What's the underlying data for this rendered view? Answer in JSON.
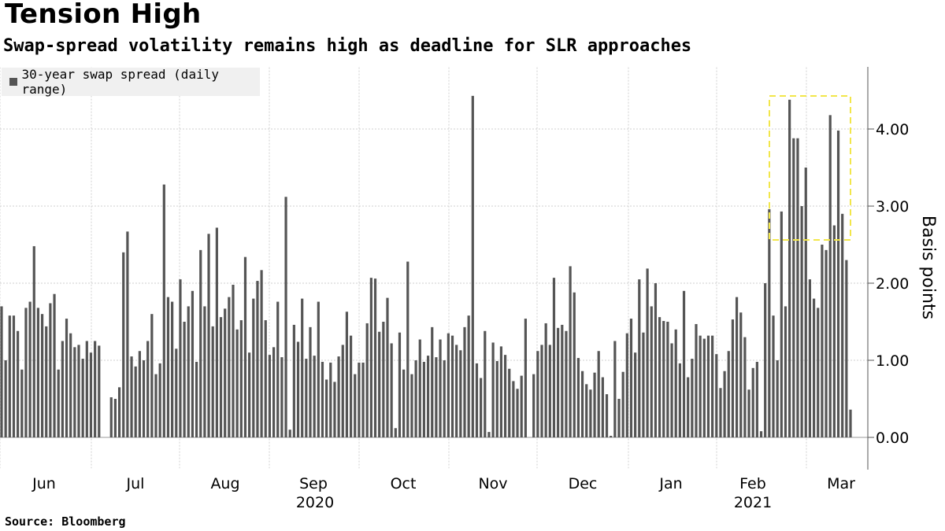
{
  "chart_data": {
    "type": "bar",
    "title": "Tension High",
    "subtitle": "Swap-spread volatility remains high as deadline for SLR approaches",
    "series_name": "30-year swap spread (daily range)",
    "ylabel": "Basis points",
    "ylim": [
      -0.4,
      4.8
    ],
    "yticks": [
      "0.00",
      "1.00",
      "2.00",
      "3.00",
      "4.00"
    ],
    "ytick_values": [
      0,
      1,
      2,
      3,
      4
    ],
    "months": [
      "Jun",
      "Jul",
      "Aug",
      "Sep",
      "Oct",
      "Nov",
      "Dec",
      "Jan",
      "Feb",
      "Mar"
    ],
    "years": [
      "2020",
      "2021"
    ],
    "source": "Source: Bloomberg",
    "values": [
      1.7,
      1.0,
      1.58,
      1.58,
      1.38,
      0.88,
      1.68,
      1.76,
      2.48,
      1.68,
      1.6,
      1.44,
      1.74,
      1.86,
      0.88,
      1.25,
      1.54,
      1.35,
      1.17,
      1.2,
      1.02,
      1.25,
      1.1,
      1.25,
      1.19,
      0,
      0,
      0.52,
      0.5,
      0.65,
      2.4,
      2.67,
      1.05,
      0.92,
      1.12,
      1.0,
      1.25,
      1.6,
      0.82,
      0.96,
      3.28,
      1.82,
      1.76,
      1.15,
      2.05,
      1.5,
      1.7,
      1.9,
      0.98,
      2.43,
      1.7,
      2.64,
      1.44,
      2.72,
      1.56,
      1.67,
      1.82,
      1.98,
      1.4,
      1.52,
      2.34,
      1.1,
      1.8,
      2.03,
      2.17,
      1.52,
      1.07,
      1.17,
      1.76,
      1.04,
      3.12,
      0.1,
      1.46,
      1.24,
      1.8,
      1.02,
      1.43,
      1.06,
      1.76,
      0.98,
      0.75,
      0.97,
      0.72,
      1.05,
      1.2,
      1.63,
      1.32,
      0.82,
      0.97,
      0.97,
      1.48,
      2.07,
      2.06,
      1.37,
      1.5,
      1.81,
      1.22,
      0.12,
      1.36,
      0.88,
      2.28,
      0.82,
      1.0,
      1.27,
      0.98,
      1.06,
      1.43,
      1.04,
      1.27,
      1.0,
      1.35,
      1.32,
      1.2,
      1.13,
      1.43,
      1.58,
      4.43,
      0.96,
      0.77,
      1.38,
      0.07,
      1.23,
      0.99,
      1.18,
      1.07,
      0.89,
      0.73,
      0.63,
      0.8,
      1.54,
      0,
      0.82,
      1.12,
      1.2,
      1.48,
      1.2,
      2.07,
      1.42,
      1.46,
      1.38,
      2.22,
      1.88,
      1.03,
      0.86,
      0.69,
      0.62,
      0.84,
      1.12,
      0.78,
      0.56,
      0.02,
      1.25,
      0.5,
      0.85,
      1.35,
      1.54,
      1.1,
      2.05,
      1.36,
      2.19,
      1.7,
      2.0,
      1.56,
      1.51,
      1.5,
      1.22,
      1.4,
      0.96,
      1.9,
      0.78,
      1.02,
      1.47,
      1.32,
      1.28,
      1.32,
      1.32,
      1.08,
      0.64,
      0.86,
      1.12,
      1.53,
      1.82,
      1.62,
      1.3,
      0.62,
      0.9,
      0.98,
      0.08,
      2.0,
      2.96,
      1.58,
      1.0,
      2.93,
      1.7,
      4.38,
      3.88,
      3.88,
      3.0,
      3.5,
      2.05,
      1.8,
      1.68,
      2.5,
      2.43,
      4.18,
      2.75,
      3.98,
      2.9,
      2.3,
      0.36
    ]
  }
}
